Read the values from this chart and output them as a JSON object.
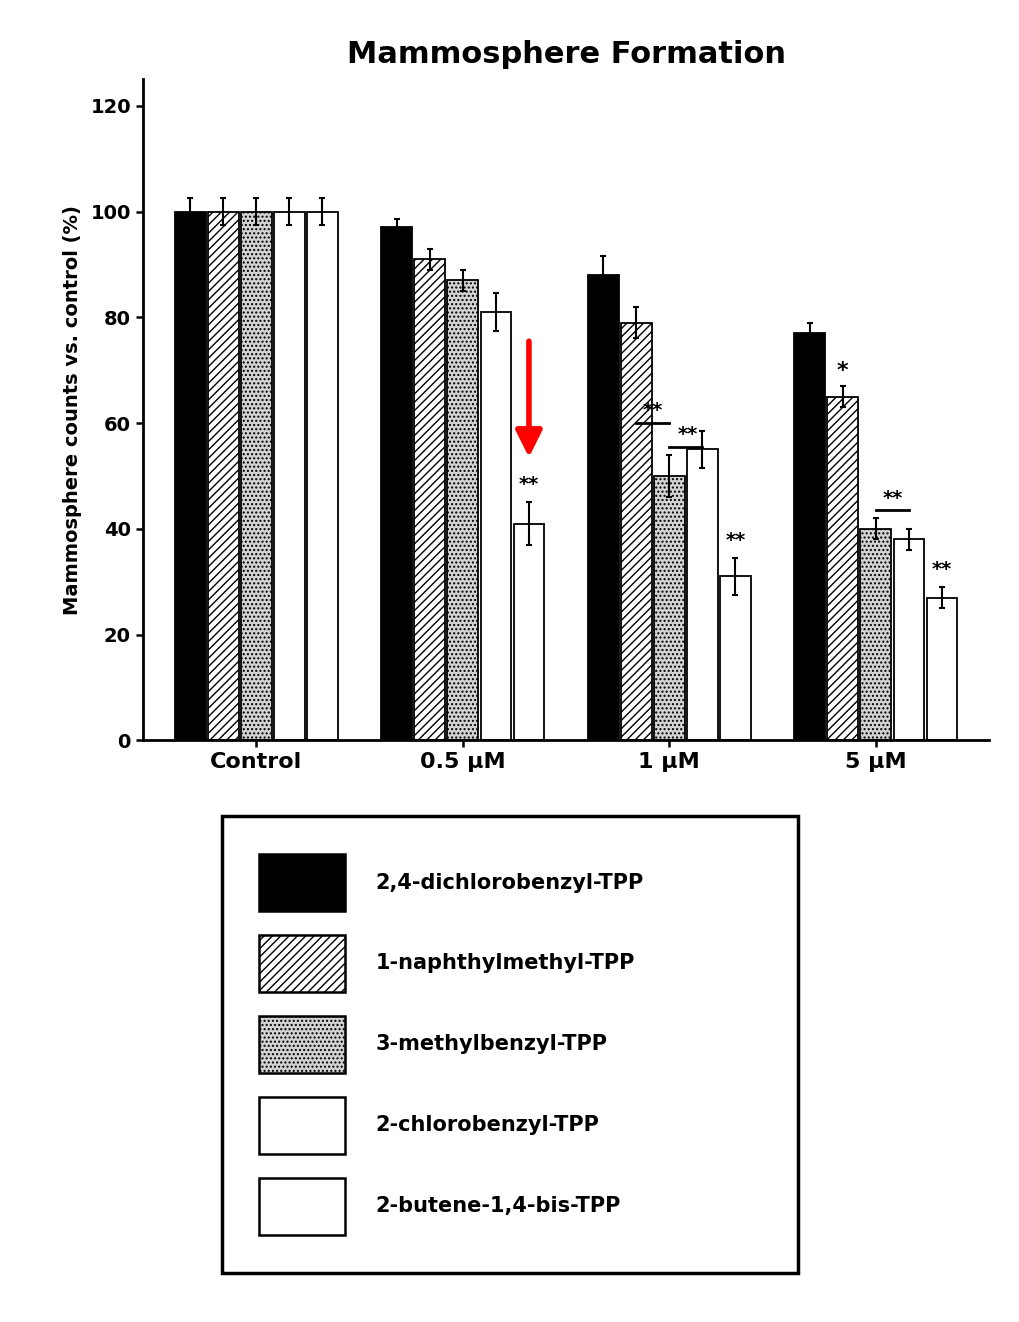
{
  "title": "Mammosphere Formation",
  "ylabel": "Mammosphere counts vs. control (%)",
  "groups": [
    "Control",
    "0.5 μM",
    "1 μM",
    "5 μM"
  ],
  "series_labels": [
    "2,4-dichlorobenzyl-TPP",
    "1-naphthylmethyl-TPP",
    "3-methylbenzyl-TPP",
    "2-chlorobenzyl-TPP",
    "2-butene-1,4-bis-TPP"
  ],
  "values": [
    [
      100,
      97,
      88,
      77
    ],
    [
      100,
      91,
      79,
      65
    ],
    [
      100,
      87,
      50,
      40
    ],
    [
      100,
      81,
      55,
      38
    ],
    [
      100,
      41,
      31,
      27
    ]
  ],
  "errors": [
    [
      2.5,
      1.5,
      3.5,
      2.0
    ],
    [
      2.5,
      2.0,
      3.0,
      2.0
    ],
    [
      2.5,
      2.0,
      4.0,
      2.0
    ],
    [
      2.5,
      3.5,
      3.5,
      2.0
    ],
    [
      2.5,
      4.0,
      3.5,
      2.0
    ]
  ],
  "colors": [
    "black",
    "white",
    "lightgray",
    "white",
    "white"
  ],
  "hatches": [
    "",
    "////",
    "....",
    "",
    "===="
  ],
  "edgecolors": [
    "black",
    "black",
    "black",
    "black",
    "black"
  ],
  "ylim": [
    0,
    125
  ],
  "yticks": [
    0,
    20,
    40,
    60,
    80,
    100,
    120
  ],
  "background_color": "white",
  "legend_items": [
    [
      "black",
      "",
      "2,4-dichlorobenzyl-TPP"
    ],
    [
      "white",
      "////",
      "1-naphthylmethyl-TPP"
    ],
    [
      "lightgray",
      "....",
      "3-methylbenzyl-TPP"
    ],
    [
      "white",
      "",
      "2-chlorobenzyl-TPP"
    ],
    [
      "white",
      "====",
      "2-butene-1,4-bis-TPP"
    ]
  ]
}
